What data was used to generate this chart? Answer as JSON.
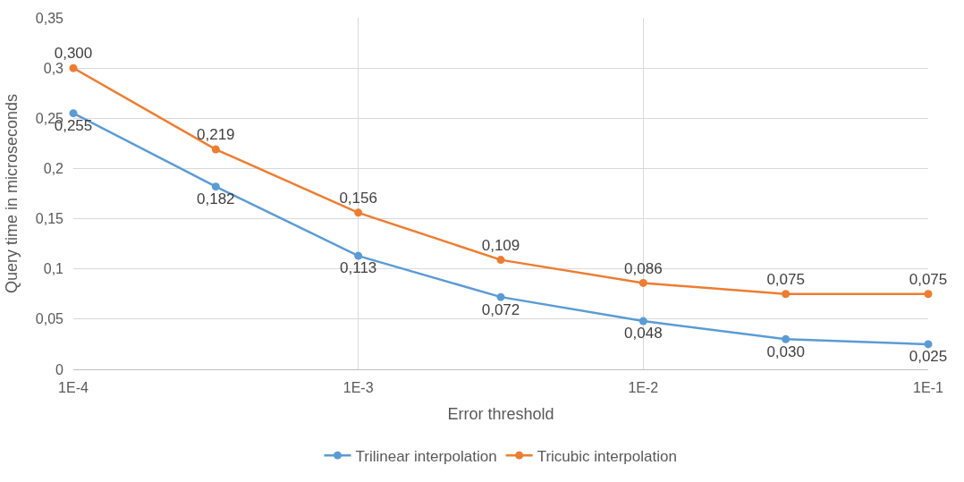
{
  "chart_data": {
    "type": "line",
    "xlabel": "Error threshold",
    "ylabel": "Query time in microseconds",
    "x": [
      0.0001,
      0.0003162,
      0.001,
      0.003162,
      0.01,
      0.03162,
      0.1
    ],
    "log": "x",
    "xlim": [
      0.0001,
      0.1
    ],
    "xticks": [
      {
        "value": 0.0001,
        "label": "1E-4"
      },
      {
        "value": 0.001,
        "label": "1E-3"
      },
      {
        "value": 0.01,
        "label": "1E-2"
      },
      {
        "value": 0.1,
        "label": "1E-1"
      }
    ],
    "ylim": [
      0,
      0.35
    ],
    "yticks": [
      0,
      {
        "value": 0.05,
        "label": "0,05"
      },
      {
        "value": 0.1,
        "label": "0,1"
      },
      {
        "value": 0.15,
        "label": "0,15"
      },
      {
        "value": 0.2,
        "label": "0,2"
      },
      {
        "value": 0.25,
        "label": "0,25"
      },
      {
        "value": 0.3,
        "label": "0,3"
      },
      {
        "value": 0.35,
        "label": "0,35"
      }
    ],
    "grid": true,
    "legend": "bottom",
    "marker": "circle",
    "line_style": "solid",
    "series": [
      {
        "name": "Trilinear interpolation",
        "color": "#5b9bd5",
        "values": [
          0.255,
          0.182,
          0.113,
          0.072,
          0.048,
          0.03,
          0.025
        ],
        "value_labels": [
          "0,255",
          "0,182",
          "0,113",
          "0,072",
          "0,048",
          "0,030",
          "0,025"
        ]
      },
      {
        "name": "Tricubic interpolation",
        "color": "#ed7d31",
        "values": [
          0.3,
          0.219,
          0.156,
          0.109,
          0.086,
          0.075,
          0.075
        ],
        "value_labels": [
          "0,300",
          "0,219",
          "0,156",
          "0,109",
          "0,086",
          "0,075",
          "0,075"
        ]
      }
    ]
  }
}
